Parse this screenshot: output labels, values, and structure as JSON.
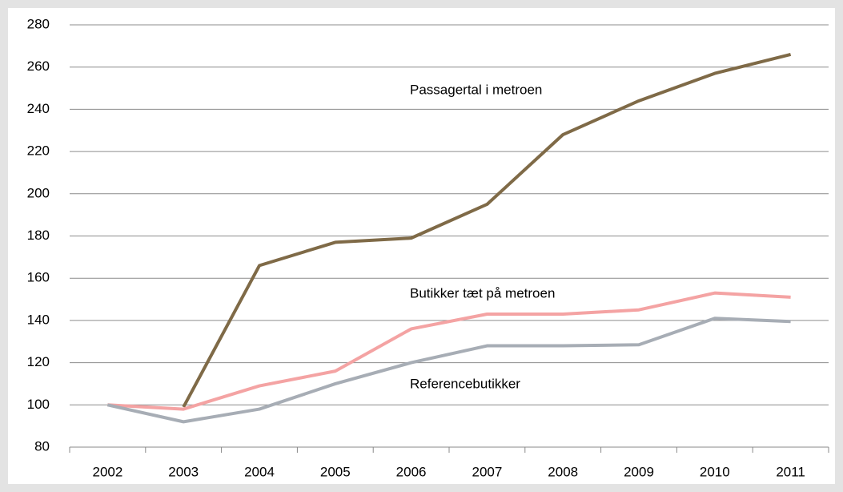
{
  "chart_data": {
    "type": "line",
    "categories": [
      "2002",
      "2003",
      "2004",
      "2005",
      "2006",
      "2007",
      "2008",
      "2009",
      "2010",
      "2011"
    ],
    "series": [
      {
        "name": "Passagertal i metroen",
        "color": "#7f6a47",
        "values": [
          null,
          99,
          166,
          177,
          179,
          195,
          228,
          244,
          257,
          266
        ]
      },
      {
        "name": "Butikker tæt på metroen",
        "color": "#f4a3a3",
        "values": [
          100,
          98,
          109,
          116,
          136,
          143,
          143,
          145,
          153,
          151
        ]
      },
      {
        "name": "Referencebutikker",
        "color": "#a7adb5",
        "values": [
          100,
          92,
          98,
          110,
          120,
          128,
          128,
          128.5,
          141,
          139.5
        ]
      }
    ],
    "ylim": [
      80,
      280
    ],
    "yticks": [
      80,
      100,
      120,
      140,
      160,
      180,
      200,
      220,
      240,
      260,
      280
    ],
    "grid": true
  }
}
